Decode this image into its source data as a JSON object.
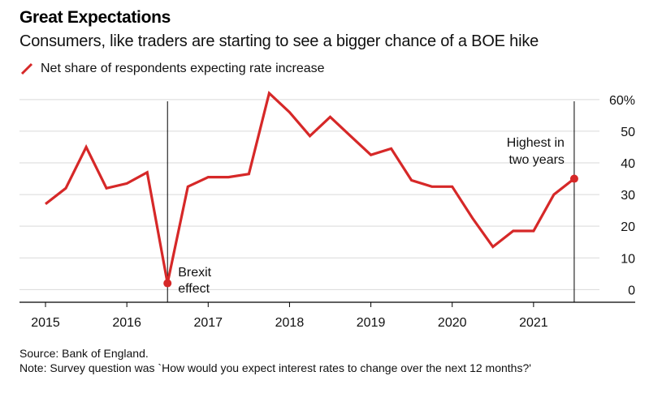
{
  "header": {
    "title": "Great Expectations",
    "subtitle": "Consumers, like traders are starting to see a bigger chance of a BOE hike"
  },
  "legend": {
    "label": "Net share of respondents expecting rate increase",
    "color": "#d62828"
  },
  "footer": {
    "source": "Source: Bank of England.",
    "note": "Note: Survey question was `How would you expect interest rates to change over the next 12 months?'"
  },
  "colors": {
    "series": "#d62828",
    "grid": "#d9d9d9",
    "axis": "#000000"
  },
  "chart_data": {
    "type": "line",
    "title": "Great Expectations",
    "subtitle": "Consumers, like traders are starting to see a bigger chance of a BOE hike",
    "xlabel": "",
    "ylabel": "",
    "xlim": [
      2014.9,
      2021.99
    ],
    "ylim": [
      -4,
      62
    ],
    "x_ticks": [
      2015,
      2016,
      2017,
      2018,
      2019,
      2020,
      2021
    ],
    "x_tick_labels": [
      "2015",
      "2016",
      "2017",
      "2018",
      "2019",
      "2020",
      "2021"
    ],
    "y_ticks": [
      0,
      10,
      20,
      30,
      40,
      50,
      60
    ],
    "y_tick_labels": [
      "0",
      "10",
      "20",
      "30",
      "40",
      "50",
      "60%"
    ],
    "y_axis_position": "right",
    "grid": "horizontal",
    "series": [
      {
        "name": "Net share of respondents expecting rate increase",
        "x": [
          2015.0,
          2015.25,
          2015.5,
          2015.75,
          2016.0,
          2016.25,
          2016.5,
          2016.75,
          2017.0,
          2017.25,
          2017.5,
          2017.75,
          2018.0,
          2018.25,
          2018.5,
          2018.75,
          2019.0,
          2019.25,
          2019.5,
          2019.75,
          2020.0,
          2020.25,
          2020.5,
          2020.75,
          2021.0,
          2021.25,
          2021.5
        ],
        "y": [
          27,
          32,
          45,
          32,
          33.5,
          37,
          2,
          32.5,
          35.5,
          35.5,
          36.5,
          62,
          56,
          48.5,
          54.5,
          48.5,
          42.5,
          44.5,
          34.5,
          32.5,
          32.5,
          22.5,
          13.5,
          18.5,
          18.5,
          30,
          35
        ]
      }
    ],
    "annotations": [
      {
        "label_lines": [
          "Brexit",
          "effect"
        ],
        "x": 2016.5,
        "y": 2,
        "vertical_line": true
      },
      {
        "label_lines": [
          "Highest in",
          "two years"
        ],
        "x": 2021.5,
        "y": 35,
        "vertical_line": true
      }
    ]
  }
}
